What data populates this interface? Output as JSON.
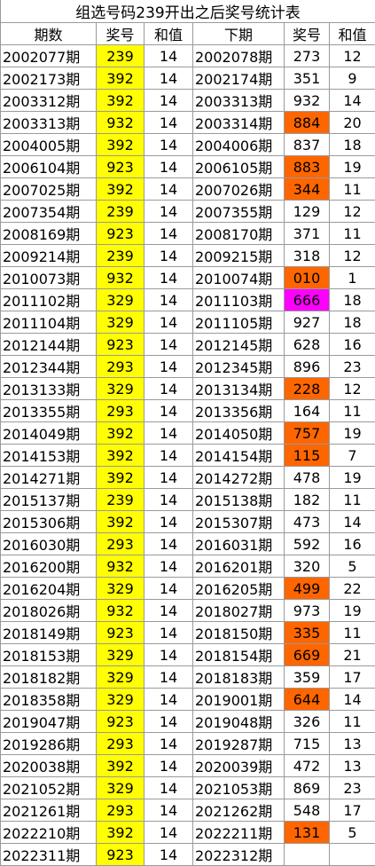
{
  "table": {
    "title": "组选号码239开出之后奖号统计表",
    "headers": [
      "期数",
      "奖号",
      "和值",
      "下期",
      "奖号",
      "和值"
    ],
    "number_color": "#ffff00",
    "rows": [
      {
        "cells": [
          "2002077期",
          "239",
          "14",
          "2002078期",
          "273",
          "12"
        ]
      },
      {
        "cells": [
          "2002173期",
          "392",
          "14",
          "2002174期",
          "351",
          "9"
        ]
      },
      {
        "cells": [
          "2003312期",
          "392",
          "14",
          "2003313期",
          "932",
          "14"
        ]
      },
      {
        "cells": [
          "2003313期",
          "932",
          "14",
          "2003314期",
          "884",
          "20"
        ],
        "color": "#ff6600"
      },
      {
        "cells": [
          "2004005期",
          "392",
          "14",
          "2004006期",
          "837",
          "18"
        ]
      },
      {
        "cells": [
          "2006104期",
          "923",
          "14",
          "2006105期",
          "883",
          "19"
        ],
        "color": "#ff6600"
      },
      {
        "cells": [
          "2007025期",
          "392",
          "14",
          "2007026期",
          "344",
          "11"
        ],
        "color": "#ff6600"
      },
      {
        "cells": [
          "2007354期",
          "239",
          "14",
          "2007355期",
          "129",
          "12"
        ]
      },
      {
        "cells": [
          "2008169期",
          "923",
          "14",
          "2008170期",
          "371",
          "11"
        ]
      },
      {
        "cells": [
          "2009214期",
          "239",
          "14",
          "2009215期",
          "318",
          "12"
        ]
      },
      {
        "cells": [
          "2010073期",
          "932",
          "14",
          "2010074期",
          "010",
          "1"
        ],
        "color": "#ff6600"
      },
      {
        "cells": [
          "2011102期",
          "329",
          "14",
          "2011103期",
          "666",
          "18"
        ],
        "color": "#ff00ff"
      },
      {
        "cells": [
          "2011104期",
          "329",
          "14",
          "2011105期",
          "927",
          "18"
        ]
      },
      {
        "cells": [
          "2012144期",
          "923",
          "14",
          "2012145期",
          "628",
          "16"
        ]
      },
      {
        "cells": [
          "2012344期",
          "293",
          "14",
          "2012345期",
          "896",
          "23"
        ]
      },
      {
        "cells": [
          "2013133期",
          "329",
          "14",
          "2013134期",
          "228",
          "12"
        ],
        "color": "#ff6600"
      },
      {
        "cells": [
          "2013355期",
          "293",
          "14",
          "2013356期",
          "164",
          "11"
        ]
      },
      {
        "cells": [
          "2014049期",
          "392",
          "14",
          "2014050期",
          "757",
          "19"
        ],
        "color": "#ff6600"
      },
      {
        "cells": [
          "2014153期",
          "392",
          "14",
          "2014154期",
          "115",
          "7"
        ],
        "color": "#ff6600"
      },
      {
        "cells": [
          "2014271期",
          "392",
          "14",
          "2014272期",
          "478",
          "19"
        ]
      },
      {
        "cells": [
          "2015137期",
          "239",
          "14",
          "2015138期",
          "182",
          "11"
        ]
      },
      {
        "cells": [
          "2015306期",
          "392",
          "14",
          "2015307期",
          "473",
          "14"
        ]
      },
      {
        "cells": [
          "2016030期",
          "293",
          "14",
          "2016031期",
          "592",
          "16"
        ]
      },
      {
        "cells": [
          "2016200期",
          "932",
          "14",
          "2016201期",
          "320",
          "5"
        ]
      },
      {
        "cells": [
          "2016204期",
          "329",
          "14",
          "2016205期",
          "499",
          "22"
        ],
        "color": "#ff6600"
      },
      {
        "cells": [
          "2018026期",
          "932",
          "14",
          "2018027期",
          "973",
          "19"
        ]
      },
      {
        "cells": [
          "2018149期",
          "923",
          "14",
          "2018150期",
          "335",
          "11"
        ],
        "color": "#ff6600"
      },
      {
        "cells": [
          "2018153期",
          "329",
          "14",
          "2018154期",
          "669",
          "21"
        ],
        "color": "#ff6600"
      },
      {
        "cells": [
          "2018182期",
          "329",
          "14",
          "2018183期",
          "359",
          "17"
        ]
      },
      {
        "cells": [
          "2018358期",
          "329",
          "14",
          "2019001期",
          "644",
          "14"
        ],
        "color": "#ff6600"
      },
      {
        "cells": [
          "2019047期",
          "923",
          "14",
          "2019048期",
          "326",
          "11"
        ]
      },
      {
        "cells": [
          "2019286期",
          "293",
          "14",
          "2019287期",
          "715",
          "13"
        ]
      },
      {
        "cells": [
          "2020038期",
          "392",
          "14",
          "2020039期",
          "472",
          "13"
        ]
      },
      {
        "cells": [
          "2021052期",
          "329",
          "14",
          "2021053期",
          "869",
          "23"
        ]
      },
      {
        "cells": [
          "2021261期",
          "293",
          "14",
          "2021262期",
          "548",
          "17"
        ]
      },
      {
        "cells": [
          "2022210期",
          "392",
          "14",
          "2022211期",
          "131",
          "5"
        ],
        "color": "#ff6600"
      },
      {
        "cells": [
          "2022311期",
          "923",
          "14",
          "2022312期"
        ]
      }
    ]
  }
}
